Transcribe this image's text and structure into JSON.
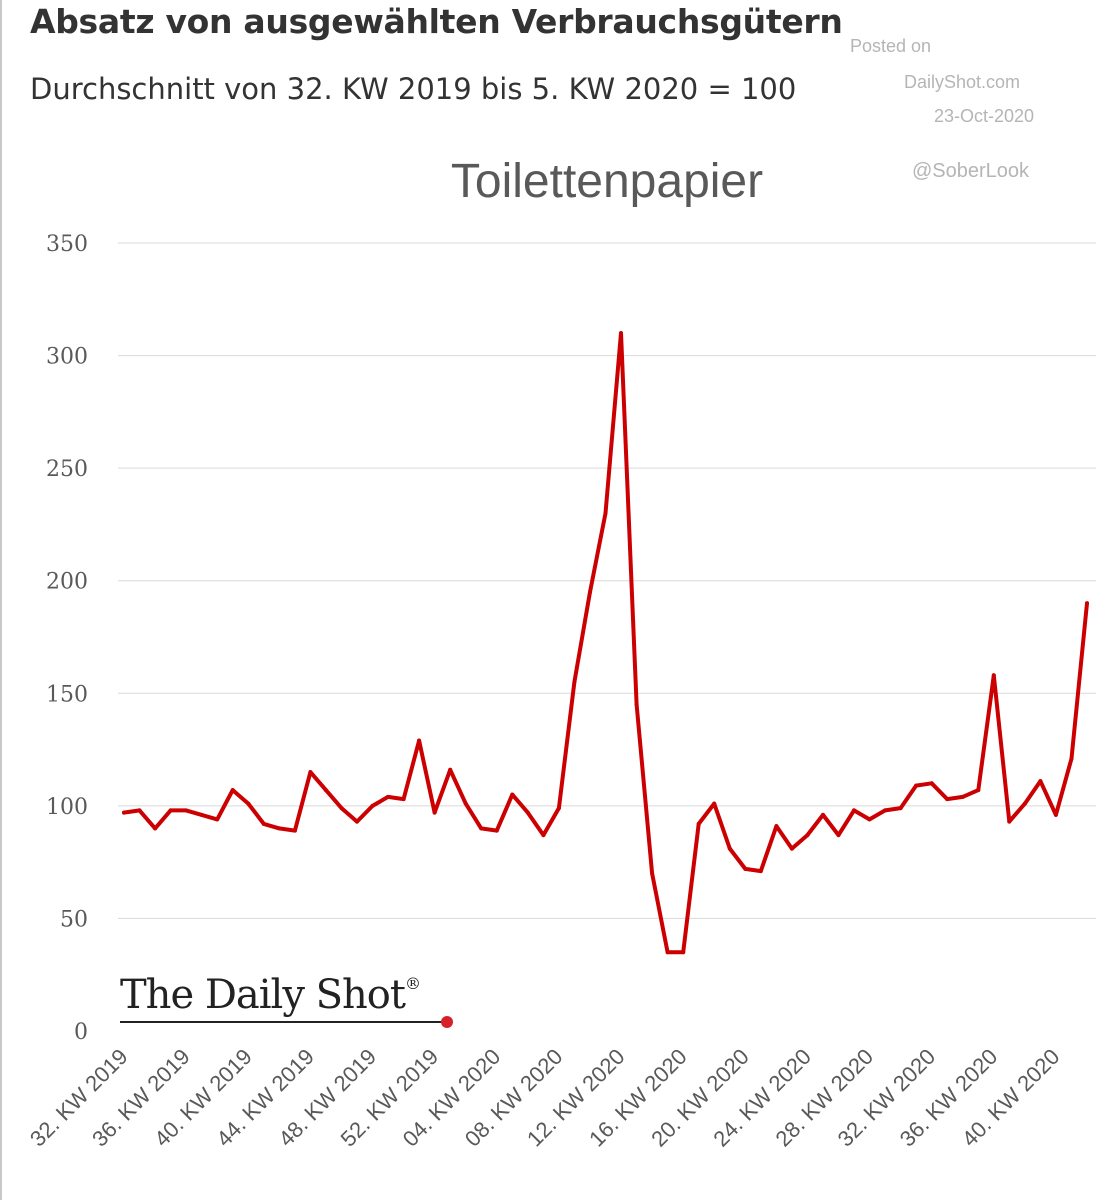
{
  "header": {
    "title": "Absatz von ausgewählten Verbrauchsgütern",
    "subtitle": "Durchschnitt von 32. KW 2019 bis 5. KW 2020 = 100"
  },
  "watermark": {
    "posted": "Posted on",
    "site": "DailyShot.com",
    "date": "23-Oct-2020",
    "handle": "@SoberLook"
  },
  "logo": {
    "text": "The Daily Shot",
    "mark": "®",
    "dot_color": "#d6202a"
  },
  "colors": {
    "line": "#cc0000",
    "grid": "#d9d9d9",
    "text": "#595959"
  },
  "chart_data": {
    "type": "line",
    "title": "Toilettenpapier",
    "xlabel": "",
    "ylabel": "",
    "ylim": [
      0,
      350
    ],
    "yticks": [
      0,
      50,
      100,
      150,
      200,
      250,
      300,
      350
    ],
    "grid": true,
    "x_tick_labels": [
      "32. KW 2019",
      "36. KW 2019",
      "40. KW 2019",
      "44. KW 2019",
      "48. KW 2019",
      "52. KW 2019",
      "04. KW 2020",
      "08. KW 2020",
      "12. KW 2020",
      "16. KW 2020",
      "20. KW 2020",
      "24. KW 2020",
      "28. KW 2020",
      "32. KW 2020",
      "36. KW 2020",
      "40. KW 2020"
    ],
    "series": [
      {
        "name": "",
        "color": "#cc0000",
        "values": [
          97,
          98,
          90,
          98,
          98,
          96,
          94,
          107,
          101,
          92,
          90,
          89,
          115,
          107,
          99,
          93,
          100,
          104,
          103,
          129,
          97,
          116,
          101,
          90,
          89,
          105,
          97,
          87,
          99,
          155,
          195,
          230,
          310,
          145,
          70,
          35,
          35,
          92,
          101,
          81,
          72,
          71,
          91,
          81,
          87,
          96,
          87,
          98,
          94,
          98,
          99,
          109,
          110,
          103,
          104,
          107,
          158,
          93,
          101,
          111,
          96,
          121,
          190
        ]
      }
    ]
  }
}
